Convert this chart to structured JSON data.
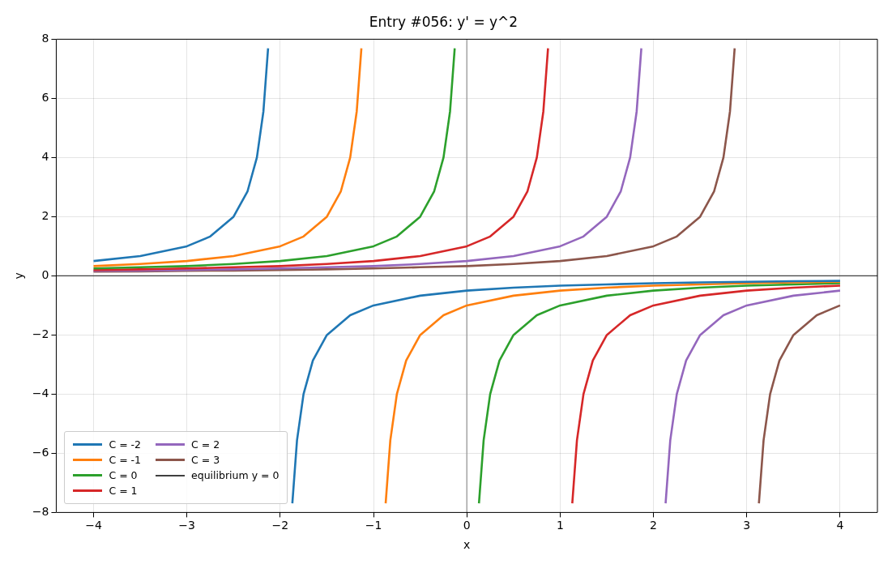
{
  "chart_data": {
    "type": "line",
    "title": "Entry #056: y' = y^2",
    "xlabel": "x",
    "ylabel": "y",
    "xlim": [
      -4.4,
      4.4
    ],
    "xticks": [
      -4,
      -3,
      -2,
      -1,
      0,
      1,
      2,
      3,
      4
    ],
    "ylim": [
      -8,
      8
    ],
    "yticks": [
      -8,
      -6,
      -4,
      -2,
      0,
      2,
      4,
      6,
      8
    ],
    "grid": true,
    "legend": "bottom left",
    "ref_lines": [
      {
        "axis": "y",
        "value": 0,
        "label": "equilibrium y = 0",
        "color": "#404040"
      },
      {
        "axis": "x",
        "value": 0,
        "label": null,
        "color": "#999999"
      }
    ],
    "series": [
      {
        "name": "C = -2",
        "color": "#1f77b4",
        "x": [
          -4,
          -3.5,
          -3,
          -2.75,
          -2.5,
          -2.35,
          -2.25,
          -2.18,
          -2.13,
          -2,
          -1.87,
          -1.82,
          -1.75,
          -1.65,
          -1.5,
          -1.25,
          -1,
          -0.5,
          0,
          0.5,
          1,
          1.5,
          2,
          2.5,
          3,
          3.5,
          4
        ],
        "values": [
          0.5,
          0.67,
          1,
          1.33,
          2,
          2.86,
          4,
          5.56,
          7.69,
          null,
          -7.69,
          -5.56,
          -4,
          -2.86,
          -2,
          -1.33,
          -1,
          -0.67,
          -0.5,
          -0.4,
          -0.33,
          -0.29,
          -0.25,
          -0.22,
          -0.2,
          -0.18,
          -0.17
        ]
      },
      {
        "name": "C = -1",
        "color": "#ff7f0e",
        "x": [
          -4,
          -3.5,
          -3,
          -2.5,
          -2,
          -1.75,
          -1.5,
          -1.35,
          -1.25,
          -1.18,
          -1.13,
          -1,
          -0.87,
          -0.82,
          -0.75,
          -0.65,
          -0.5,
          -0.25,
          0,
          0.5,
          1,
          1.5,
          2,
          2.5,
          3,
          3.5,
          4
        ],
        "values": [
          0.33,
          0.4,
          0.5,
          0.67,
          1,
          1.33,
          2,
          2.86,
          4,
          5.56,
          7.69,
          null,
          -7.69,
          -5.56,
          -4,
          -2.86,
          -2,
          -1.33,
          -1,
          -0.67,
          -0.5,
          -0.4,
          -0.33,
          -0.29,
          -0.25,
          -0.22,
          -0.2
        ]
      },
      {
        "name": "C = 0",
        "color": "#2ca02c",
        "x": [
          -4,
          -3.5,
          -3,
          -2.5,
          -2,
          -1.5,
          -1,
          -0.75,
          -0.5,
          -0.35,
          -0.25,
          -0.18,
          -0.13,
          0,
          0.13,
          0.18,
          0.25,
          0.35,
          0.5,
          0.75,
          1,
          1.5,
          2,
          2.5,
          3,
          3.5,
          4
        ],
        "values": [
          0.25,
          0.29,
          0.33,
          0.4,
          0.5,
          0.67,
          1,
          1.33,
          2,
          2.86,
          4,
          5.56,
          7.69,
          null,
          -7.69,
          -5.56,
          -4,
          -2.86,
          -2,
          -1.33,
          -1,
          -0.67,
          -0.5,
          -0.4,
          -0.33,
          -0.29,
          -0.25
        ]
      },
      {
        "name": "C = 1",
        "color": "#d62728",
        "x": [
          -4,
          -3.5,
          -3,
          -2.5,
          -2,
          -1.5,
          -1,
          -0.5,
          0,
          0.25,
          0.5,
          0.65,
          0.75,
          0.82,
          0.87,
          1,
          1.13,
          1.18,
          1.25,
          1.35,
          1.5,
          1.75,
          2,
          2.5,
          3,
          3.5,
          4
        ],
        "values": [
          0.2,
          0.22,
          0.25,
          0.29,
          0.33,
          0.4,
          0.5,
          0.67,
          1,
          1.33,
          2,
          2.86,
          4,
          5.56,
          7.69,
          null,
          -7.69,
          -5.56,
          -4,
          -2.86,
          -2,
          -1.33,
          -1,
          -0.67,
          -0.5,
          -0.4,
          -0.33
        ]
      },
      {
        "name": "C = 2",
        "color": "#9467bd",
        "x": [
          -4,
          -3.5,
          -3,
          -2.5,
          -2,
          -1.5,
          -1,
          -0.5,
          0,
          0.5,
          1,
          1.25,
          1.5,
          1.65,
          1.75,
          1.82,
          1.87,
          2,
          2.13,
          2.18,
          2.25,
          2.35,
          2.5,
          2.75,
          3,
          3.5,
          4
        ],
        "values": [
          0.17,
          0.18,
          0.2,
          0.22,
          0.25,
          0.29,
          0.33,
          0.4,
          0.5,
          0.67,
          1,
          1.33,
          2,
          2.86,
          4,
          5.56,
          7.69,
          null,
          -7.69,
          -5.56,
          -4,
          -2.86,
          -2,
          -1.33,
          -1,
          -0.67,
          -0.5
        ]
      },
      {
        "name": "C = 3",
        "color": "#8c564b",
        "x": [
          -4,
          -3.5,
          -3,
          -2.5,
          -2,
          -1.5,
          -1,
          -0.5,
          0,
          0.5,
          1,
          1.5,
          2,
          2.25,
          2.5,
          2.65,
          2.75,
          2.82,
          2.87,
          3,
          3.13,
          3.18,
          3.25,
          3.35,
          3.5,
          3.75,
          4
        ],
        "values": [
          0.14,
          0.15,
          0.17,
          0.18,
          0.2,
          0.22,
          0.25,
          0.29,
          0.33,
          0.4,
          0.5,
          0.67,
          1,
          1.33,
          2,
          2.86,
          4,
          5.56,
          7.69,
          null,
          -7.69,
          -5.56,
          -4,
          -2.86,
          -2,
          -1.33,
          -1
        ]
      }
    ]
  }
}
